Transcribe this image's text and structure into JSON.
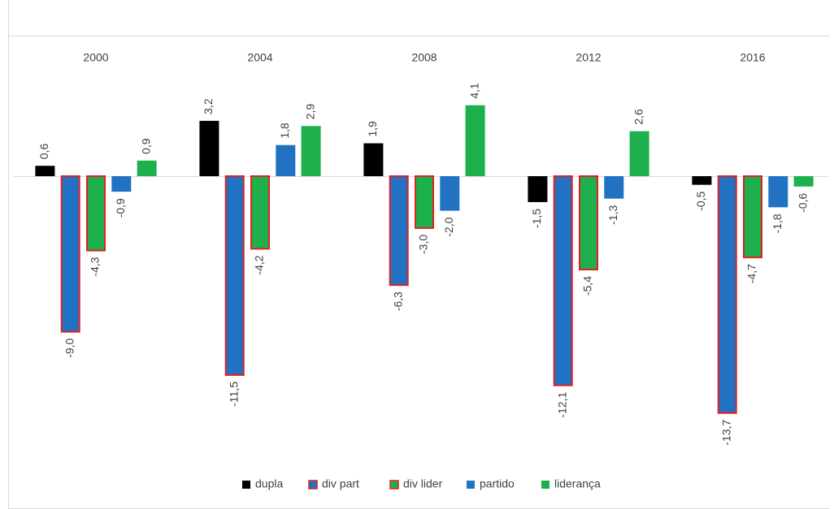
{
  "chart_data": {
    "type": "bar",
    "categories": [
      "2000",
      "2004",
      "2008",
      "2012",
      "2016"
    ],
    "series": [
      {
        "name": "dupla",
        "color": "#000000",
        "values": [
          0.6,
          3.2,
          1.9,
          -1.5,
          -0.5
        ],
        "value_labels": [
          "0,6",
          "3,2",
          "1,9",
          "-1,5",
          "-0,5"
        ]
      },
      {
        "name": "div part",
        "color": "#2272c4",
        "edgecolor": "#e02020",
        "values": [
          -9.0,
          -11.5,
          -6.3,
          -12.1,
          -13.7
        ],
        "value_labels": [
          "-9,0",
          "-11,5",
          "-6,3",
          "-12,1",
          "-13,7"
        ]
      },
      {
        "name": "div lider",
        "color": "#1db04d",
        "edgecolor": "#e02020",
        "values": [
          -4.3,
          -4.2,
          -3.0,
          -5.4,
          -4.7
        ],
        "value_labels": [
          "-4,3",
          "-4,2",
          "-3,0",
          "-5,4",
          "-4,7"
        ]
      },
      {
        "name": "partido",
        "color": "#2272c4",
        "values": [
          -0.9,
          1.8,
          -2.0,
          -1.3,
          -1.8
        ],
        "value_labels": [
          "-0,9",
          "1,8",
          "-2,0",
          "-1,3",
          "-1,8"
        ]
      },
      {
        "name": "liderança",
        "color": "#1db04d",
        "values": [
          0.9,
          2.9,
          4.1,
          2.6,
          -0.6
        ],
        "value_labels": [
          "0,9",
          "2,9",
          "4,1",
          "2,6",
          "-0,6"
        ]
      }
    ],
    "legend": "bottom"
  }
}
